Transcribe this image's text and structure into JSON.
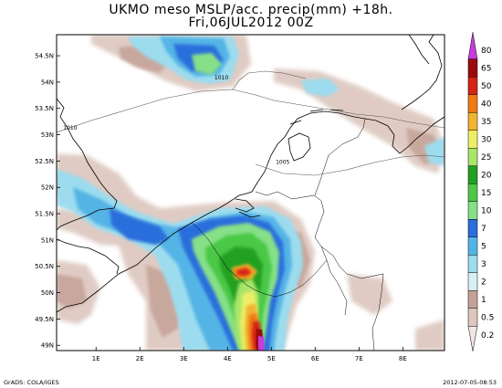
{
  "title": {
    "line1": "UKMO meso MSLP/acc. precip(mm) +18h.",
    "line2": "Fri,06JUL2012 00Z"
  },
  "footer": {
    "left": "GrADS: COLA/IGES",
    "right": "2012-07-05-08:53"
  },
  "map": {
    "lat_range": [
      48.9,
      54.9
    ],
    "lon_range": [
      0.1,
      8.95
    ],
    "lat_ticks": [
      {
        "value": 49.0,
        "label": "49N"
      },
      {
        "value": 49.5,
        "label": "49.5N"
      },
      {
        "value": 50.0,
        "label": "50N"
      },
      {
        "value": 50.5,
        "label": "50.5N"
      },
      {
        "value": 51.0,
        "label": "51N"
      },
      {
        "value": 51.5,
        "label": "51.5N"
      },
      {
        "value": 52.0,
        "label": "52N"
      },
      {
        "value": 52.5,
        "label": "52.5N"
      },
      {
        "value": 53.0,
        "label": "53N"
      },
      {
        "value": 53.5,
        "label": "53.5N"
      },
      {
        "value": 54.0,
        "label": "54N"
      },
      {
        "value": 54.5,
        "label": "54.5N"
      }
    ],
    "lon_ticks": [
      {
        "value": 1,
        "label": "1E"
      },
      {
        "value": 2,
        "label": "2E"
      },
      {
        "value": 3,
        "label": "3E"
      },
      {
        "value": 4,
        "label": "4E"
      },
      {
        "value": 5,
        "label": "5E"
      },
      {
        "value": 6,
        "label": "6E"
      },
      {
        "value": 7,
        "label": "7E"
      },
      {
        "value": 8,
        "label": "8E"
      }
    ],
    "isobar_labels": [
      {
        "text": "1010",
        "lon": 3.7,
        "lat": 54.05
      },
      {
        "text": "1010",
        "lon": 0.25,
        "lat": 53.1
      },
      {
        "text": "1005",
        "lon": 5.1,
        "lat": 52.45
      }
    ]
  },
  "legend": {
    "levels": [
      {
        "label": "0.2",
        "color": "#f0e6e3"
      },
      {
        "label": "0.5",
        "color": "#dcc6bd"
      },
      {
        "label": "1",
        "color": "#c4a297"
      },
      {
        "label": "2",
        "color": "#d8f0f4"
      },
      {
        "label": "3",
        "color": "#9cdcee"
      },
      {
        "label": "5",
        "color": "#55b4e6"
      },
      {
        "label": "7",
        "color": "#2a6edc"
      },
      {
        "label": "10",
        "color": "#86e088"
      },
      {
        "label": "15",
        "color": "#4cc846"
      },
      {
        "label": "20",
        "color": "#22a024"
      },
      {
        "label": "25",
        "color": "#a8e66a"
      },
      {
        "label": "30",
        "color": "#eeee66"
      },
      {
        "label": "35",
        "color": "#f0b430"
      },
      {
        "label": "40",
        "color": "#ee7a14"
      },
      {
        "label": "50",
        "color": "#d42414"
      },
      {
        "label": "65",
        "color": "#9a0c0c"
      },
      {
        "label": "80",
        "color": "#c83cdc"
      }
    ]
  }
}
